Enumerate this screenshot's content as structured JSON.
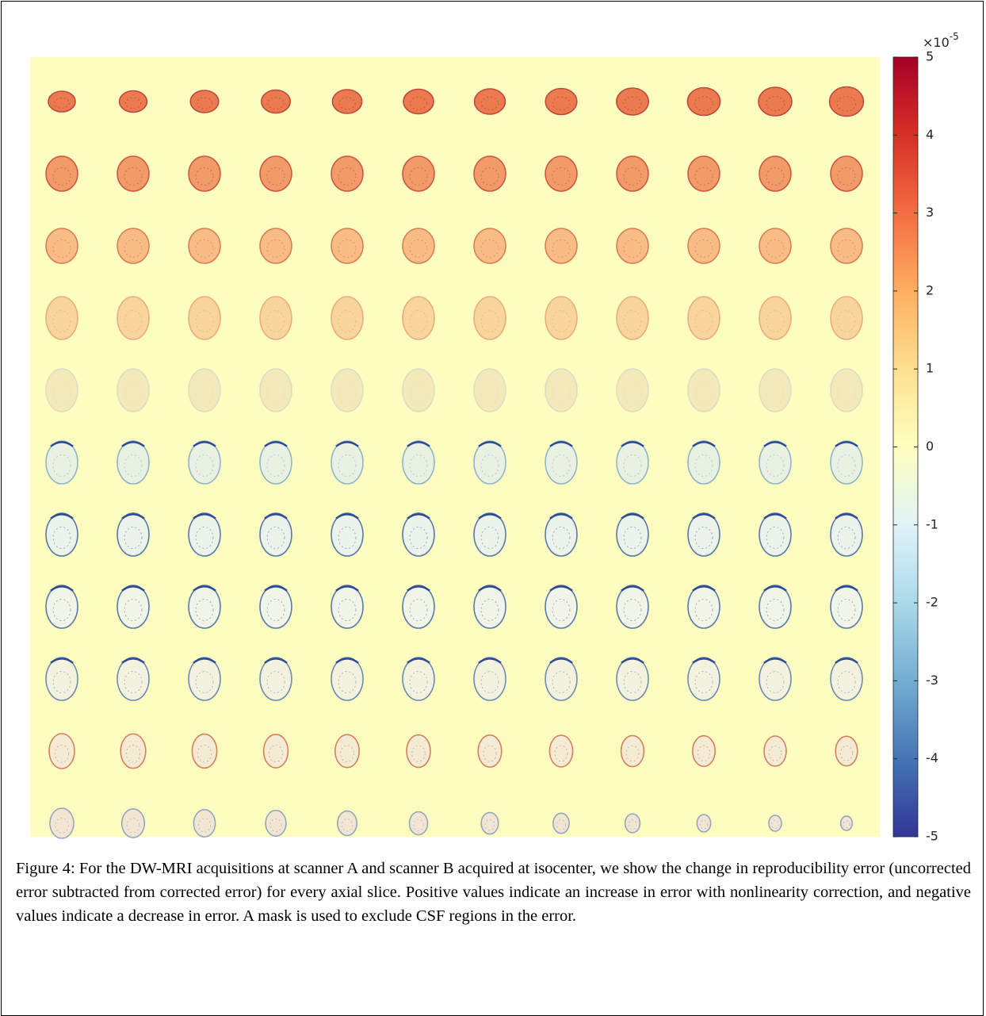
{
  "figure": {
    "colorbar": {
      "lim": [
        -5,
        5
      ],
      "ticks": [
        -5,
        -4,
        -3,
        -2,
        -1,
        0,
        1,
        2,
        3,
        4,
        5
      ],
      "exponent_base": "×10",
      "exponent_power": "-5",
      "colors": [
        "#313695",
        "#4575b4",
        "#74add1",
        "#abd9e9",
        "#e0f3f8",
        "#ffffbf",
        "#fee090",
        "#fdae61",
        "#f46d43",
        "#d73027",
        "#a50026"
      ]
    }
  },
  "caption": "Figure 4: For the DW-MRI acquisitions at scanner A and scanner B acquired at isocenter, we show the change in reproducibility error (uncorrected error subtracted from corrected error) for every axial slice. Positive values indicate an increase in error with nonlinearity correction, and negative values indicate a decrease in error. A mask is used to exclude CSF regions in the error."
}
